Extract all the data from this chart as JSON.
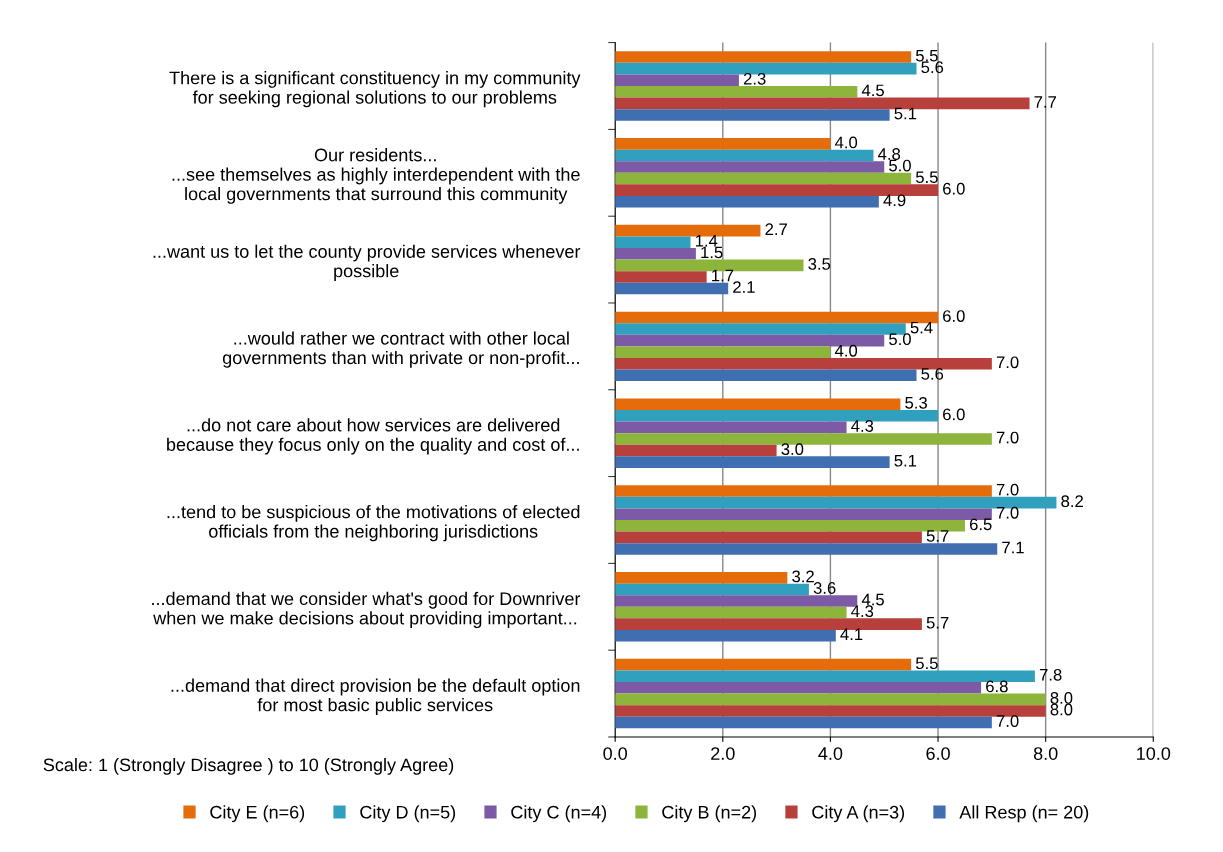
{
  "chart_data": {
    "type": "bar",
    "orientation": "horizontal",
    "categories": [
      "There is a significant constituency in my community\nfor seeking regional solutions to our problems",
      "Our residents...\n...see themselves as highly interdependent with the\nlocal governments that surround this community",
      "...want us to let the county provide services whenever\npossible",
      "...would rather we contract with other local\ngovernments than with private or non-profit...",
      "...do not care about how services are delivered\nbecause they focus only on the quality and cost of...",
      "...tend to be suspicious of the motivations of elected\nofficials from the neighboring jurisdictions",
      "...demand that we consider what's good for Downriver\nwhen we make decisions about providing important...",
      "...demand that direct provision be the default option\nfor most basic public services"
    ],
    "series": [
      {
        "name": "City E (n=6)",
        "color": "#e46c0a",
        "values": [
          5.5,
          4.0,
          2.7,
          6.0,
          5.3,
          7.0,
          3.2,
          5.5
        ],
        "value_labels": [
          "5.5",
          "4.0",
          "2.7",
          "6.0",
          "5.3",
          "7.0",
          "3.2",
          "5.5"
        ]
      },
      {
        "name": "City D (n=5)",
        "color": "#31a0be",
        "values": [
          5.6,
          4.8,
          1.4,
          5.4,
          6.0,
          8.2,
          3.6,
          7.8
        ],
        "value_labels": [
          "5.6",
          "4.8",
          "1.4",
          "5.4",
          "6.0",
          "8.2",
          "3.6",
          "7.8"
        ]
      },
      {
        "name": "City C (n=4)",
        "color": "#7d5aa6",
        "values": [
          2.3,
          5.0,
          1.5,
          5.0,
          4.3,
          7.0,
          4.5,
          6.8
        ],
        "value_labels": [
          "2.3",
          "5.0",
          "1.5",
          "5.0",
          "4.3",
          "7.0",
          "4.5",
          "6.8"
        ]
      },
      {
        "name": "City B (n=2)",
        "color": "#8db53c",
        "values": [
          4.5,
          5.5,
          3.5,
          4.0,
          7.0,
          6.5,
          4.3,
          8.0
        ],
        "value_labels": [
          "4.5",
          "5.5",
          "3.5",
          "4.0",
          "7.0",
          "6.5",
          "4.3",
          "8.0"
        ]
      },
      {
        "name": "City A (n=3)",
        "color": "#b8403c",
        "values": [
          7.7,
          6.0,
          1.7,
          7.0,
          3.0,
          5.7,
          5.7,
          8.0
        ],
        "value_labels": [
          "7.7",
          "6.0",
          "1.7",
          "7.0",
          "3.0",
          "5.7",
          "5.7",
          "8.0"
        ]
      },
      {
        "name": "All Resp (n= 20)",
        "color": "#3f6fb0",
        "values": [
          5.1,
          4.9,
          2.1,
          5.6,
          5.1,
          7.1,
          4.1,
          7.0
        ],
        "value_labels": [
          "5.1",
          "4.9",
          "2.1",
          "5.6",
          "5.1",
          "7.1",
          "4.1",
          "7.0"
        ]
      }
    ],
    "xlim": [
      0,
      10
    ],
    "xticks": [
      {
        "value": 0,
        "label": "0.0"
      },
      {
        "value": 2,
        "label": "2.0"
      },
      {
        "value": 4,
        "label": "4.0"
      },
      {
        "value": 6,
        "label": "6.0"
      },
      {
        "value": 8,
        "label": "8.0"
      },
      {
        "value": 10,
        "label": "10.0"
      }
    ],
    "grid": "x",
    "legend": "bottom",
    "annotations": [
      "Scale: 1 (Strongly Disagree ) to 10 (Strongly Agree)"
    ]
  }
}
